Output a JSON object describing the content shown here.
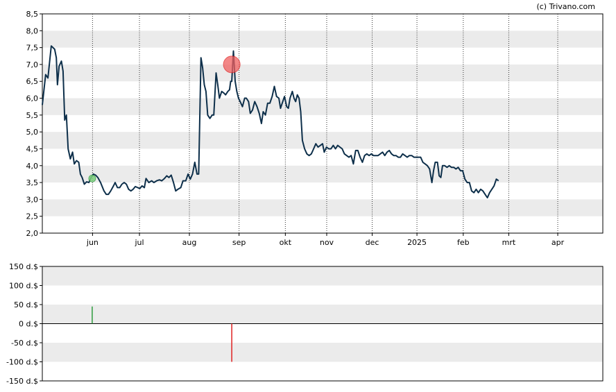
{
  "credit": "(c) Trivano.com",
  "colors": {
    "line": "#0d2f4a",
    "band": "#ebebeb",
    "buy": "#2e9b3e",
    "sell": "#e02020",
    "sell_marker": "#f06060",
    "buy_marker": "#7ccf7c"
  },
  "chart_data": [
    {
      "type": "line",
      "title": "",
      "xlabel": "",
      "ylabel": "",
      "ylim": [
        2.0,
        8.5
      ],
      "y_ticks": [
        "2,0",
        "2,5",
        "3,0",
        "3,5",
        "4,0",
        "4,5",
        "5,0",
        "5,5",
        "6,0",
        "6,5",
        "7,0",
        "7,5",
        "8,0",
        "8,5"
      ],
      "x_ticks": [
        {
          "label": "jun",
          "pos": 0.0896
        },
        {
          "label": "jul",
          "pos": 0.1733
        },
        {
          "label": "aug",
          "pos": 0.2624
        },
        {
          "label": "sep",
          "pos": 0.351
        },
        {
          "label": "okt",
          "pos": 0.4336
        },
        {
          "label": "nov",
          "pos": 0.5074
        },
        {
          "label": "dec",
          "pos": 0.5885
        },
        {
          "label": "2025",
          "pos": 0.6684
        },
        {
          "label": "feb",
          "pos": 0.751
        },
        {
          "label": "mrt",
          "pos": 0.8322
        },
        {
          "label": "apr",
          "pos": 0.9196
        }
      ],
      "grid": "vertical dotted at month ticks, alternating horizontal bands",
      "series": [
        {
          "values": [
            [
              0.0,
              5.8
            ],
            [
              0.006,
              6.7
            ],
            [
              0.01,
              6.6
            ],
            [
              0.016,
              7.55
            ],
            [
              0.022,
              7.45
            ],
            [
              0.025,
              7.2
            ],
            [
              0.027,
              6.4
            ],
            [
              0.03,
              6.95
            ],
            [
              0.034,
              7.1
            ],
            [
              0.037,
              6.8
            ],
            [
              0.04,
              5.35
            ],
            [
              0.043,
              5.5
            ],
            [
              0.046,
              4.5
            ],
            [
              0.05,
              4.2
            ],
            [
              0.054,
              4.4
            ],
            [
              0.057,
              4.05
            ],
            [
              0.061,
              4.15
            ],
            [
              0.065,
              4.1
            ],
            [
              0.068,
              3.75
            ],
            [
              0.071,
              3.65
            ],
            [
              0.075,
              3.45
            ],
            [
              0.079,
              3.52
            ],
            [
              0.083,
              3.5
            ],
            [
              0.087,
              3.65
            ],
            [
              0.091,
              3.75
            ],
            [
              0.095,
              3.72
            ],
            [
              0.099,
              3.65
            ],
            [
              0.104,
              3.5
            ],
            [
              0.11,
              3.25
            ],
            [
              0.114,
              3.15
            ],
            [
              0.118,
              3.15
            ],
            [
              0.122,
              3.25
            ],
            [
              0.127,
              3.4
            ],
            [
              0.13,
              3.5
            ],
            [
              0.134,
              3.35
            ],
            [
              0.138,
              3.35
            ],
            [
              0.142,
              3.45
            ],
            [
              0.146,
              3.5
            ],
            [
              0.15,
              3.45
            ],
            [
              0.154,
              3.3
            ],
            [
              0.158,
              3.25
            ],
            [
              0.162,
              3.3
            ],
            [
              0.166,
              3.38
            ],
            [
              0.17,
              3.35
            ],
            [
              0.174,
              3.32
            ],
            [
              0.178,
              3.4
            ],
            [
              0.182,
              3.35
            ],
            [
              0.185,
              3.62
            ],
            [
              0.19,
              3.5
            ],
            [
              0.195,
              3.55
            ],
            [
              0.199,
              3.5
            ],
            [
              0.204,
              3.55
            ],
            [
              0.209,
              3.58
            ],
            [
              0.213,
              3.55
            ],
            [
              0.218,
              3.62
            ],
            [
              0.222,
              3.7
            ],
            [
              0.226,
              3.65
            ],
            [
              0.23,
              3.72
            ],
            [
              0.234,
              3.5
            ],
            [
              0.238,
              3.25
            ],
            [
              0.242,
              3.3
            ],
            [
              0.247,
              3.35
            ],
            [
              0.251,
              3.55
            ],
            [
              0.256,
              3.55
            ],
            [
              0.26,
              3.75
            ],
            [
              0.264,
              3.6
            ],
            [
              0.268,
              3.75
            ],
            [
              0.272,
              4.1
            ],
            [
              0.276,
              3.75
            ],
            [
              0.279,
              3.75
            ],
            [
              0.283,
              7.2
            ],
            [
              0.286,
              6.9
            ],
            [
              0.289,
              6.4
            ],
            [
              0.292,
              6.2
            ],
            [
              0.295,
              5.5
            ],
            [
              0.299,
              5.4
            ],
            [
              0.303,
              5.5
            ],
            [
              0.306,
              5.5
            ],
            [
              0.31,
              6.75
            ],
            [
              0.313,
              6.4
            ],
            [
              0.316,
              6.0
            ],
            [
              0.32,
              6.2
            ],
            [
              0.324,
              6.15
            ],
            [
              0.327,
              6.1
            ],
            [
              0.331,
              6.2
            ],
            [
              0.334,
              6.25
            ],
            [
              0.336,
              6.5
            ],
            [
              0.338,
              6.5
            ],
            [
              0.341,
              7.4
            ],
            [
              0.344,
              6.5
            ],
            [
              0.347,
              6.2
            ],
            [
              0.35,
              6.0
            ],
            [
              0.353,
              5.9
            ],
            [
              0.357,
              5.75
            ],
            [
              0.361,
              6.0
            ],
            [
              0.364,
              6.0
            ],
            [
              0.368,
              5.9
            ],
            [
              0.371,
              5.55
            ],
            [
              0.375,
              5.65
            ],
            [
              0.379,
              5.9
            ],
            [
              0.383,
              5.75
            ],
            [
              0.387,
              5.55
            ],
            [
              0.391,
              5.25
            ],
            [
              0.394,
              5.6
            ],
            [
              0.398,
              5.5
            ],
            [
              0.402,
              5.85
            ],
            [
              0.406,
              5.85
            ],
            [
              0.41,
              6.05
            ],
            [
              0.414,
              6.35
            ],
            [
              0.418,
              6.05
            ],
            [
              0.422,
              6.0
            ],
            [
              0.425,
              5.7
            ],
            [
              0.428,
              5.85
            ],
            [
              0.432,
              6.05
            ],
            [
              0.436,
              5.75
            ],
            [
              0.439,
              5.7
            ],
            [
              0.442,
              6.0
            ],
            [
              0.446,
              6.2
            ],
            [
              0.449,
              6.0
            ],
            [
              0.452,
              5.9
            ],
            [
              0.455,
              6.1
            ],
            [
              0.458,
              6.0
            ],
            [
              0.461,
              5.6
            ],
            [
              0.464,
              4.75
            ],
            [
              0.468,
              4.5
            ],
            [
              0.472,
              4.35
            ],
            [
              0.476,
              4.3
            ],
            [
              0.48,
              4.35
            ],
            [
              0.484,
              4.5
            ],
            [
              0.488,
              4.65
            ],
            [
              0.492,
              4.55
            ],
            [
              0.496,
              4.6
            ],
            [
              0.5,
              4.65
            ],
            [
              0.503,
              4.4
            ],
            [
              0.507,
              4.55
            ],
            [
              0.511,
              4.5
            ],
            [
              0.515,
              4.5
            ],
            [
              0.519,
              4.6
            ],
            [
              0.523,
              4.5
            ],
            [
              0.527,
              4.6
            ],
            [
              0.531,
              4.55
            ],
            [
              0.535,
              4.5
            ],
            [
              0.539,
              4.35
            ],
            [
              0.543,
              4.3
            ],
            [
              0.547,
              4.25
            ],
            [
              0.551,
              4.3
            ],
            [
              0.555,
              4.05
            ],
            [
              0.559,
              4.45
            ],
            [
              0.563,
              4.45
            ],
            [
              0.567,
              4.25
            ],
            [
              0.571,
              4.1
            ],
            [
              0.575,
              4.3
            ],
            [
              0.579,
              4.35
            ],
            [
              0.583,
              4.3
            ],
            [
              0.587,
              4.35
            ],
            [
              0.591,
              4.3
            ],
            [
              0.595,
              4.3
            ],
            [
              0.599,
              4.3
            ],
            [
              0.603,
              4.35
            ],
            [
              0.607,
              4.4
            ],
            [
              0.611,
              4.3
            ],
            [
              0.615,
              4.4
            ],
            [
              0.619,
              4.45
            ],
            [
              0.623,
              4.35
            ],
            [
              0.627,
              4.3
            ],
            [
              0.631,
              4.3
            ],
            [
              0.635,
              4.25
            ],
            [
              0.639,
              4.25
            ],
            [
              0.643,
              4.35
            ],
            [
              0.647,
              4.3
            ],
            [
              0.651,
              4.25
            ],
            [
              0.655,
              4.3
            ],
            [
              0.659,
              4.3
            ],
            [
              0.663,
              4.25
            ],
            [
              0.667,
              4.25
            ],
            [
              0.671,
              4.25
            ],
            [
              0.675,
              4.25
            ],
            [
              0.679,
              4.1
            ],
            [
              0.683,
              4.05
            ],
            [
              0.687,
              4.0
            ],
            [
              0.691,
              3.9
            ],
            [
              0.695,
              3.5
            ],
            [
              0.698,
              3.85
            ],
            [
              0.701,
              4.1
            ],
            [
              0.705,
              4.1
            ],
            [
              0.708,
              3.7
            ],
            [
              0.711,
              3.65
            ],
            [
              0.714,
              4.0
            ],
            [
              0.718,
              4.0
            ],
            [
              0.722,
              3.95
            ],
            [
              0.726,
              4.0
            ],
            [
              0.73,
              3.95
            ],
            [
              0.734,
              3.95
            ],
            [
              0.738,
              3.9
            ],
            [
              0.742,
              3.95
            ],
            [
              0.746,
              3.85
            ],
            [
              0.75,
              3.85
            ],
            [
              0.754,
              3.6
            ],
            [
              0.758,
              3.5
            ],
            [
              0.762,
              3.5
            ],
            [
              0.766,
              3.25
            ],
            [
              0.77,
              3.2
            ],
            [
              0.774,
              3.3
            ],
            [
              0.778,
              3.2
            ],
            [
              0.782,
              3.3
            ],
            [
              0.786,
              3.25
            ],
            [
              0.79,
              3.15
            ],
            [
              0.794,
              3.05
            ],
            [
              0.798,
              3.2
            ],
            [
              0.802,
              3.3
            ],
            [
              0.806,
              3.4
            ],
            [
              0.81,
              3.6
            ],
            [
              0.814,
              3.55
            ]
          ]
        }
      ],
      "annotations": [
        {
          "type": "buy",
          "x": 0.089,
          "y": 3.62
        },
        {
          "type": "sell",
          "x": 0.338,
          "y": 7.0
        }
      ]
    },
    {
      "type": "bar",
      "title": "",
      "xlabel": "",
      "ylabel": "",
      "ylim": [
        -150,
        150
      ],
      "y_ticks": [
        "150 d.$",
        "100 d.$",
        "50 d.$",
        "0 d.$",
        "-50 d.$",
        "-100 d.$",
        "-150 d.$"
      ],
      "series": [
        {
          "values": [
            {
              "x": 0.089,
              "value": 45
            },
            {
              "x": 0.338,
              "value": -100
            }
          ]
        }
      ]
    }
  ]
}
